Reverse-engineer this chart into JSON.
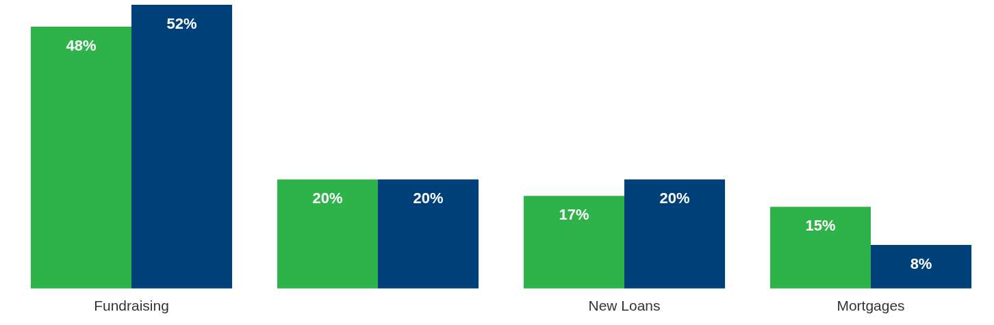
{
  "chart_data": {
    "type": "bar",
    "categories": [
      "Fundraising",
      null,
      "New Loans",
      "Mortgages"
    ],
    "series": [
      {
        "color": "#2db34a",
        "values": [
          48,
          20,
          17,
          15
        ],
        "value_labels": [
          "48%",
          "20%",
          "17%",
          "15%"
        ]
      },
      {
        "color": "#00407a",
        "values": [
          52,
          20,
          20,
          8
        ],
        "value_labels": [
          "52%",
          "20%",
          "20%",
          "8%"
        ]
      }
    ],
    "grid": false,
    "legend": false
  }
}
